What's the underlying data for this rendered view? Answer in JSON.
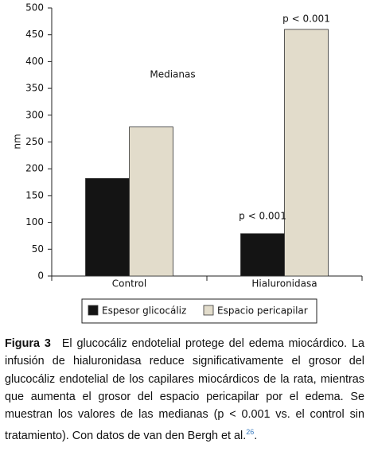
{
  "chart_data": {
    "type": "bar",
    "y_label": "nm",
    "categories": [
      "Control",
      "Hialuronidasa"
    ],
    "series": [
      {
        "name": "Espesor glicocáliz",
        "color": "#141414",
        "values": [
          182,
          79
        ]
      },
      {
        "name": "Espacio pericapilar",
        "color": "#e2dccb",
        "values": [
          278,
          460
        ]
      }
    ],
    "annotations": [
      "Medianas",
      "p < 0.001",
      "p < 0.001"
    ],
    "ylim": [
      0,
      500
    ],
    "yticks": [
      0,
      50,
      100,
      150,
      200,
      250,
      300,
      350,
      400,
      450,
      500
    ],
    "grid": false,
    "legend": "bottom"
  },
  "caption": {
    "label": "Figura 3",
    "text": "El glucocáliz endotelial protege del edema miocárdico. La infusión de hialuronidasa reduce significativamente el grosor del glucocáliz endotelial de los capilares miocárdicos de la rata, mientras que aumenta el grosor del espacio pericapilar por el edema. Se muestran los valores de las medianas (p < 0.001 vs. el control sin tratamiento). Con datos de van den Bergh et al.",
    "ref": "26",
    "end": "."
  }
}
